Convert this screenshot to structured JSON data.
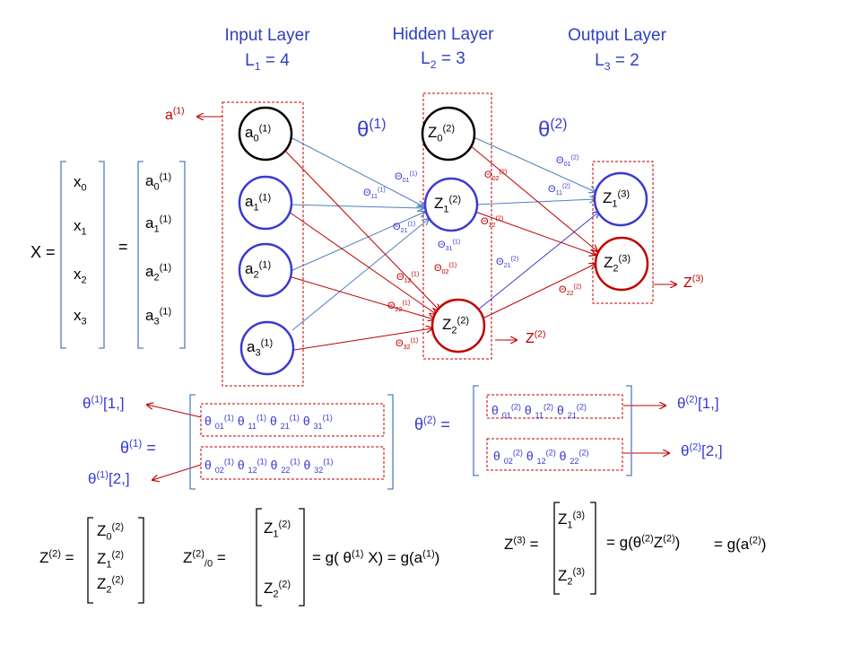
{
  "headers": {
    "input_title": "Input Layer",
    "input_size": {
      "base": "L",
      "sub": "1",
      "tail": " = 4"
    },
    "hidden_title": "Hidden Layer",
    "hidden_size": {
      "base": "L",
      "sub": "2",
      "tail": " = 3"
    },
    "output_title": "Output Layer",
    "output_size": {
      "base": "L",
      "sub": "3",
      "tail": " = 2"
    }
  },
  "colors": {
    "blue": "#3a3ad0",
    "red": "#c00000",
    "blue_line": "#4f81bd",
    "dark": "#000000"
  },
  "nodes": {
    "input": [
      {
        "base": "a",
        "sub": "0",
        "sup": "(1)",
        "color": "dark"
      },
      {
        "base": "a",
        "sub": "1",
        "sup": "(1)",
        "color": "blue"
      },
      {
        "base": "a",
        "sub": "2",
        "sup": "(1)",
        "color": "blue"
      },
      {
        "base": "a",
        "sub": "3",
        "sup": "(1)",
        "color": "blue"
      }
    ],
    "hidden": [
      {
        "base": "Z",
        "sub": "0",
        "sup": "(2)",
        "color": "dark"
      },
      {
        "base": "Z",
        "sub": "1",
        "sup": "(2)",
        "color": "blue"
      },
      {
        "base": "Z",
        "sub": "2",
        "sup": "(2)",
        "color": "red"
      }
    ],
    "output": [
      {
        "base": "Z",
        "sub": "1",
        "sup": "(3)",
        "color": "blue"
      },
      {
        "base": "Z",
        "sub": "2",
        "sup": "(3)",
        "color": "red"
      }
    ]
  },
  "arrows": {
    "a1": {
      "base": "a",
      "sup": "(1)"
    },
    "z2": {
      "base": "Z",
      "sup": "(2)"
    },
    "z3": {
      "base": "Z",
      "sup": "(3)"
    }
  },
  "big_theta": {
    "t1": {
      "base": "θ",
      "sup": "(1)"
    },
    "t2": {
      "base": "θ",
      "sup": "(2)"
    }
  },
  "edge_labels_layer1": [
    {
      "base": "Θ",
      "sub": "01",
      "sup": "(1)"
    },
    {
      "base": "Θ",
      "sub": "11",
      "sup": "(1)"
    },
    {
      "base": "Θ",
      "sub": "21",
      "sup": "(1)"
    },
    {
      "base": "Θ",
      "sub": "31",
      "sup": "(1)"
    },
    {
      "base": "Θ",
      "sub": "02",
      "sup": "(1)"
    },
    {
      "base": "Θ",
      "sub": "12",
      "sup": "(1)"
    },
    {
      "base": "Θ",
      "sub": "22",
      "sup": "(1)"
    },
    {
      "base": "Θ",
      "sub": "32",
      "sup": "(1)"
    }
  ],
  "edge_labels_layer2": [
    {
      "base": "Θ",
      "sub": "01",
      "sup": "(2)"
    },
    {
      "base": "Θ",
      "sub": "11",
      "sup": "(2)"
    },
    {
      "base": "Θ",
      "sub": "21",
      "sup": "(2)"
    },
    {
      "base": "Θ",
      "sub": "02",
      "sup": "(2)"
    },
    {
      "base": "Θ",
      "sub": "12",
      "sup": "(2)"
    },
    {
      "base": "Θ",
      "sub": "22",
      "sup": "(2)"
    }
  ],
  "x_vector": {
    "lhs": "X =",
    "eq": "=",
    "x_items": [
      {
        "base": "x",
        "sub": "0"
      },
      {
        "base": "x",
        "sub": "1"
      },
      {
        "base": "x",
        "sub": "2"
      },
      {
        "base": "x",
        "sub": "3"
      }
    ],
    "a_items": [
      {
        "base": "a",
        "sub": "0",
        "sup": "(1)"
      },
      {
        "base": "a",
        "sub": "1",
        "sup": "(1)"
      },
      {
        "base": "a",
        "sub": "2",
        "sup": "(1)"
      },
      {
        "base": "a",
        "sub": "3",
        "sup": "(1)"
      }
    ]
  },
  "theta1_matrix": {
    "lhs": {
      "base": "θ",
      "sup": "(1)",
      "tail": " ="
    },
    "row1": [
      {
        "base": "θ",
        "sub": "01",
        "sup": "(1)"
      },
      {
        "base": "θ",
        "sub": "11",
        "sup": "(1)"
      },
      {
        "base": "θ",
        "sub": "21",
        "sup": "(1)"
      },
      {
        "base": "θ",
        "sub": "31",
        "sup": "(1)"
      }
    ],
    "row2": [
      {
        "base": "θ",
        "sub": "02",
        "sup": "(1)"
      },
      {
        "base": "θ",
        "sub": "12",
        "sup": "(1)"
      },
      {
        "base": "θ",
        "sub": "22",
        "sup": "(1)"
      },
      {
        "base": "θ",
        "sub": "32",
        "sup": "(1)"
      }
    ],
    "row1_label": {
      "base": "θ",
      "sup": "(1)",
      "tail": "[1,]"
    },
    "row2_label": {
      "base": "θ",
      "sup": "(1)",
      "tail": "[2,]"
    }
  },
  "theta2_matrix": {
    "lhs": {
      "base": "θ",
      "sup": "(2)",
      "tail": " ="
    },
    "row1": [
      {
        "base": "θ",
        "sub": "01",
        "sup": "(2)"
      },
      {
        "base": "θ",
        "sub": "11",
        "sup": "(2)"
      },
      {
        "base": "θ",
        "sub": "21",
        "sup": "(2)"
      }
    ],
    "row2": [
      {
        "base": "θ",
        "sub": "02",
        "sup": "(2)"
      },
      {
        "base": "θ",
        "sub": "12",
        "sup": "(2)"
      },
      {
        "base": "θ",
        "sub": "22",
        "sup": "(2)"
      }
    ],
    "row1_label": {
      "base": "θ",
      "sup": "(2)",
      "tail": "[1,]"
    },
    "row2_label": {
      "base": "θ",
      "sup": "(2)",
      "tail": "[2,]"
    }
  },
  "equations": {
    "z2_lhs": {
      "base": "Z",
      "sup": "(2)",
      "tail": " ="
    },
    "z2_items": [
      {
        "base": "Z",
        "sub": "0",
        "sup": "(2)"
      },
      {
        "base": "Z",
        "sub": "1",
        "sup": "(2)"
      },
      {
        "base": "Z",
        "sub": "2",
        "sup": "(2)"
      }
    ],
    "z2_0_lhs": {
      "base": "Z",
      "sup": "(2)",
      "sub": "/0",
      "tail": " ="
    },
    "z2_0_items": [
      {
        "base": "Z",
        "sub": "1",
        "sup": "(2)"
      },
      {
        "base": "Z",
        "sub": "2",
        "sup": "(2)"
      }
    ],
    "z2_0_rhs": {
      "pre": "=  g(  θ",
      "sup": "(1)",
      "post": " X)  = g(a",
      "sup2": "(1)",
      "tail": ")"
    },
    "z3_lhs": {
      "base": "Z",
      "sup": "(3)",
      "tail": " ="
    },
    "z3_items": [
      {
        "base": "Z",
        "sub": "1",
        "sup": "(3)"
      },
      {
        "base": "Z",
        "sub": "2",
        "sup": "(3)"
      }
    ],
    "z3_rhs": {
      "pre": "=  g(θ",
      "sup": "(2)",
      "mid": "Z",
      "sup_mid": "(2)",
      "post": ")",
      "tail_pre": "= g(a",
      "sup2": "(2)",
      "tail": ")"
    }
  }
}
